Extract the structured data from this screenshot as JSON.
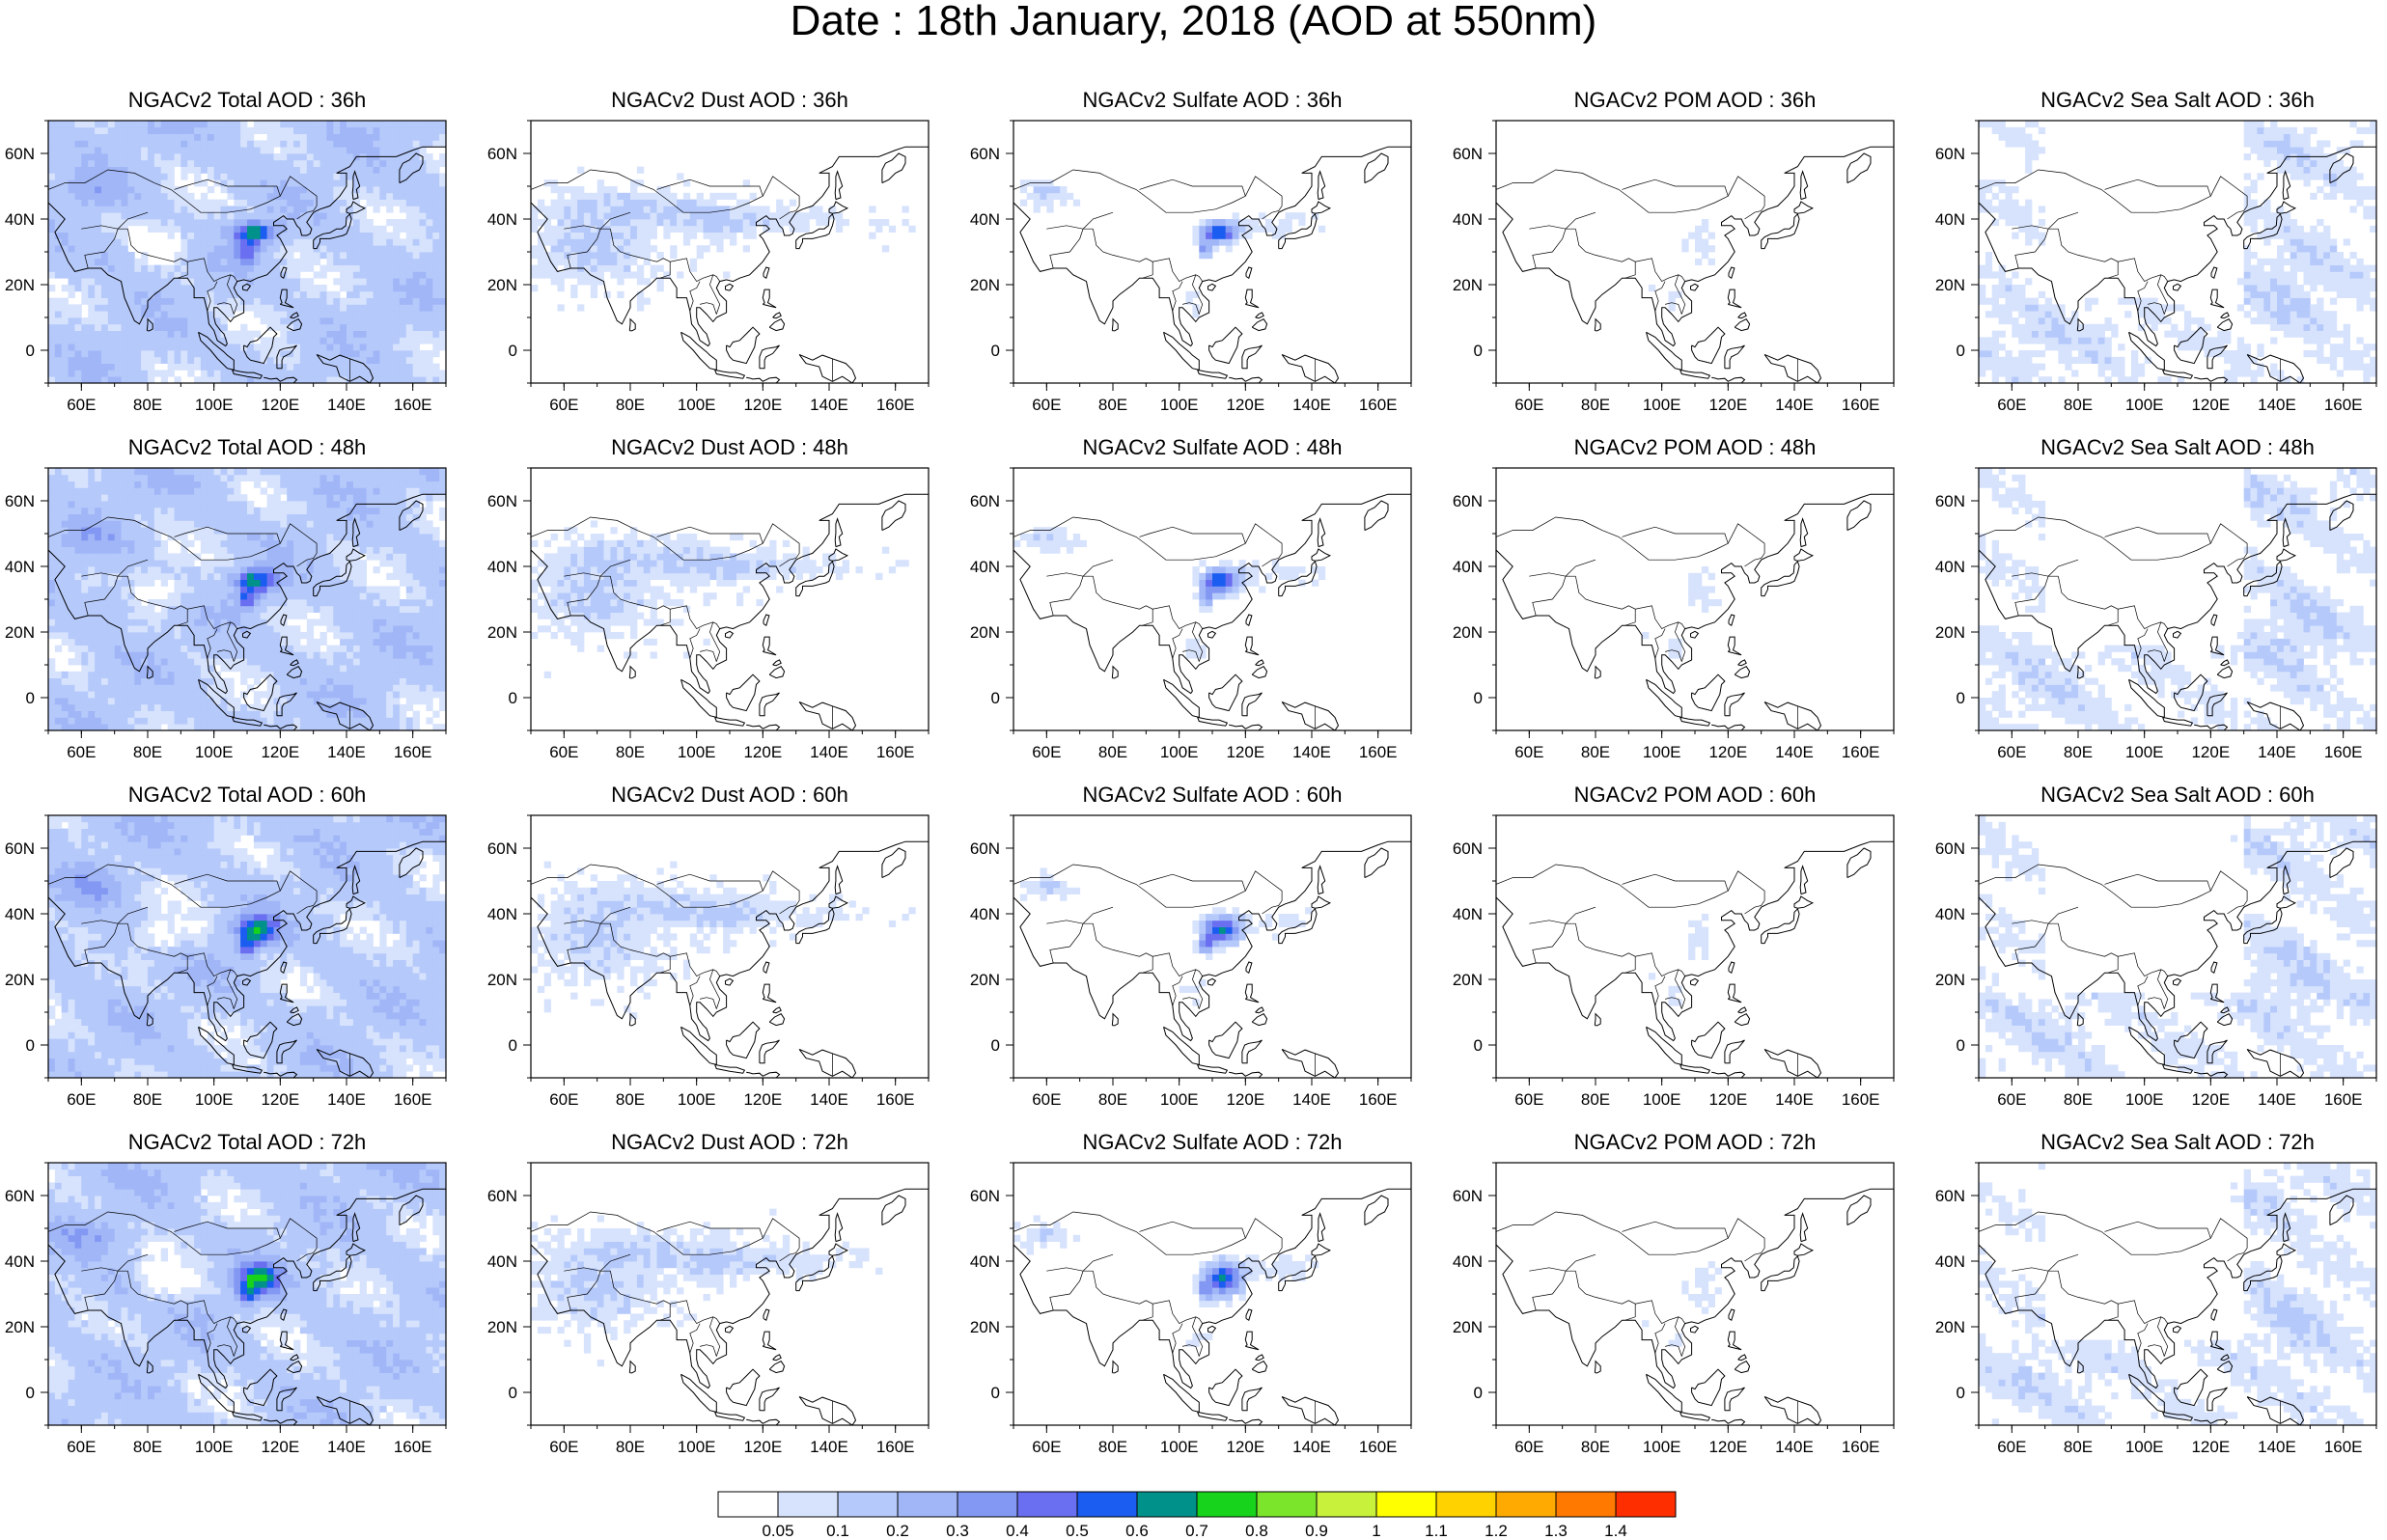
{
  "title": "Date : 18th January, 2018 (AOD at 550nm)",
  "panels": [
    {
      "title": "NGACv2 Total AOD : 36h",
      "species": "total",
      "hour": "36h"
    },
    {
      "title": "NGACv2 Dust AOD : 36h",
      "species": "dust",
      "hour": "36h"
    },
    {
      "title": "NGACv2 Sulfate AOD : 36h",
      "species": "sulfate",
      "hour": "36h"
    },
    {
      "title": "NGACv2 POM AOD : 36h",
      "species": "pom",
      "hour": "36h"
    },
    {
      "title": "NGACv2 Sea Salt AOD : 36h",
      "species": "seasalt",
      "hour": "36h"
    },
    {
      "title": "NGACv2 Total AOD : 48h",
      "species": "total",
      "hour": "48h"
    },
    {
      "title": "NGACv2 Dust AOD : 48h",
      "species": "dust",
      "hour": "48h"
    },
    {
      "title": "NGACv2 Sulfate AOD : 48h",
      "species": "sulfate",
      "hour": "48h"
    },
    {
      "title": "NGACv2 POM AOD : 48h",
      "species": "pom",
      "hour": "48h"
    },
    {
      "title": "NGACv2 Sea Salt AOD : 48h",
      "species": "seasalt",
      "hour": "48h"
    },
    {
      "title": "NGACv2 Total AOD : 60h",
      "species": "total",
      "hour": "60h"
    },
    {
      "title": "NGACv2 Dust AOD : 60h",
      "species": "dust",
      "hour": "60h"
    },
    {
      "title": "NGACv2 Sulfate AOD : 60h",
      "species": "sulfate",
      "hour": "60h"
    },
    {
      "title": "NGACv2 POM AOD : 60h",
      "species": "pom",
      "hour": "60h"
    },
    {
      "title": "NGACv2 Sea Salt AOD : 60h",
      "species": "seasalt",
      "hour": "60h"
    },
    {
      "title": "NGACv2 Total AOD : 72h",
      "species": "total",
      "hour": "72h"
    },
    {
      "title": "NGACv2 Dust AOD : 72h",
      "species": "dust",
      "hour": "72h"
    },
    {
      "title": "NGACv2 Sulfate AOD : 72h",
      "species": "sulfate",
      "hour": "72h"
    },
    {
      "title": "NGACv2 POM AOD : 72h",
      "species": "pom",
      "hour": "72h"
    },
    {
      "title": "NGACv2 Sea Salt  AOD : 72h",
      "species": "seasalt",
      "hour": "72h"
    }
  ],
  "map_extent": {
    "lon_min": 50,
    "lon_max": 170,
    "lat_min": -10,
    "lat_max": 70
  },
  "lon_ticks": [
    "60E",
    "80E",
    "100E",
    "120E",
    "140E",
    "160E"
  ],
  "lon_tick_values": [
    60,
    80,
    100,
    120,
    140,
    160
  ],
  "lat_ticks": [
    "60N",
    "40N",
    "20N",
    "0"
  ],
  "lat_tick_values": [
    60,
    40,
    20,
    0
  ],
  "colorbar": {
    "labels": [
      "0.05",
      "0.1",
      "0.2",
      "0.3",
      "0.4",
      "0.5",
      "0.6",
      "0.7",
      "0.8",
      "0.9",
      "1",
      "1.1",
      "1.2",
      "1.3",
      "1.4"
    ],
    "colors": [
      "#ffffff",
      "#d7e3fd",
      "#b5c9fb",
      "#a1b6f7",
      "#8398f3",
      "#6a6ef0",
      "#1b5df0",
      "#00918a",
      "#17d31b",
      "#7be52c",
      "#c8f13c",
      "#ffff00",
      "#ffd200",
      "#ffaa00",
      "#ff7800",
      "#ff2e00"
    ]
  },
  "colors": {
    "land_outline": "#000000",
    "frame": "#000000"
  }
}
